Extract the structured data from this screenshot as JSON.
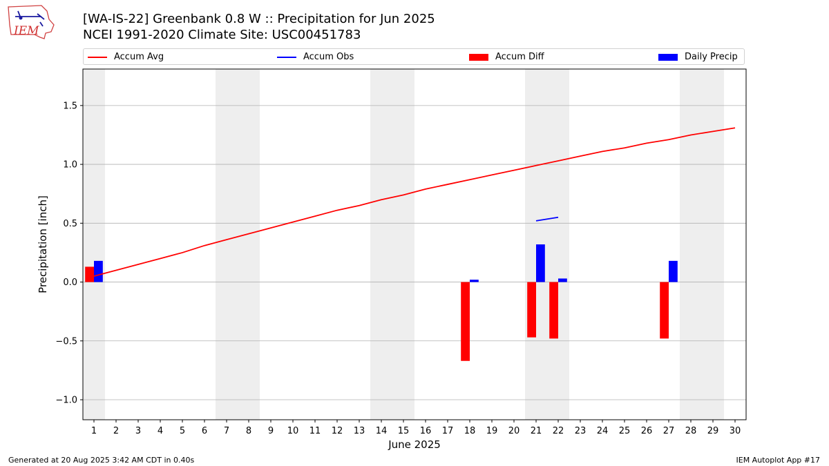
{
  "header": {
    "title_line1": "[WA-IS-22] Greenbank 0.8 W :: Precipitation for Jun 2025",
    "title_line2": "NCEI 1991-2020 Climate Site: USC00451783",
    "logo_text": "IEM"
  },
  "legend": [
    {
      "label": "Accum Avg",
      "color": "#ff0000",
      "kind": "line"
    },
    {
      "label": "Accum Obs",
      "color": "#0000ff",
      "kind": "line"
    },
    {
      "label": "Accum Diff",
      "color": "#ff0000",
      "kind": "box"
    },
    {
      "label": "Daily Precip",
      "color": "#0000ff",
      "kind": "box"
    }
  ],
  "footer": {
    "generated": "Generated at 20 Aug 2025 3:42 AM CDT in 0.40s",
    "app": "IEM Autoplot App #17"
  },
  "chart_data": {
    "type": "bar",
    "xlabel": "June 2025",
    "ylabel": "Precipitation [inch]",
    "xlim": [
      0.5,
      30.5
    ],
    "ylim": [
      -1.17,
      1.81
    ],
    "yticks": [
      -1.0,
      -0.5,
      0.0,
      0.5,
      1.0,
      1.5
    ],
    "ytick_labels": [
      "−1.0",
      "−0.5",
      "0.0",
      "0.5",
      "1.0",
      "1.5"
    ],
    "xticks": [
      1,
      2,
      3,
      4,
      5,
      6,
      7,
      8,
      9,
      10,
      11,
      12,
      13,
      14,
      15,
      16,
      17,
      18,
      19,
      20,
      21,
      22,
      23,
      24,
      25,
      26,
      27,
      28,
      29,
      30
    ],
    "grid": "horizontal",
    "weekend_shading": [
      [
        0.5,
        1.5
      ],
      [
        6.5,
        8.5
      ],
      [
        13.5,
        15.5
      ],
      [
        20.5,
        22.5
      ],
      [
        27.5,
        29.5
      ]
    ],
    "shade_color": "#eeeeee",
    "accum_avg": {
      "name": "Accum Avg",
      "color": "#ff0000",
      "x": [
        1,
        2,
        3,
        4,
        5,
        6,
        7,
        8,
        9,
        10,
        11,
        12,
        13,
        14,
        15,
        16,
        17,
        18,
        19,
        20,
        21,
        22,
        23,
        24,
        25,
        26,
        27,
        28,
        29,
        30
      ],
      "values": [
        0.05,
        0.1,
        0.15,
        0.2,
        0.25,
        0.31,
        0.36,
        0.41,
        0.46,
        0.51,
        0.56,
        0.61,
        0.65,
        0.7,
        0.74,
        0.79,
        0.83,
        0.87,
        0.91,
        0.95,
        0.99,
        1.03,
        1.07,
        1.11,
        1.14,
        1.18,
        1.21,
        1.25,
        1.28,
        1.31
      ]
    },
    "accum_obs": {
      "name": "Accum Obs",
      "color": "#0000ff",
      "x": [
        21,
        22
      ],
      "values": [
        0.52,
        0.55
      ]
    },
    "accum_diff": {
      "name": "Accum Diff",
      "color": "#ff0000",
      "x": [
        1,
        18,
        21,
        22,
        27
      ],
      "values": [
        0.13,
        -0.67,
        -0.47,
        -0.48,
        -0.48
      ]
    },
    "daily_precip": {
      "name": "Daily Precip",
      "color": "#0000ff",
      "x": [
        1,
        18,
        21,
        22,
        27
      ],
      "values": [
        0.18,
        0.02,
        0.32,
        0.03,
        0.18
      ]
    }
  }
}
